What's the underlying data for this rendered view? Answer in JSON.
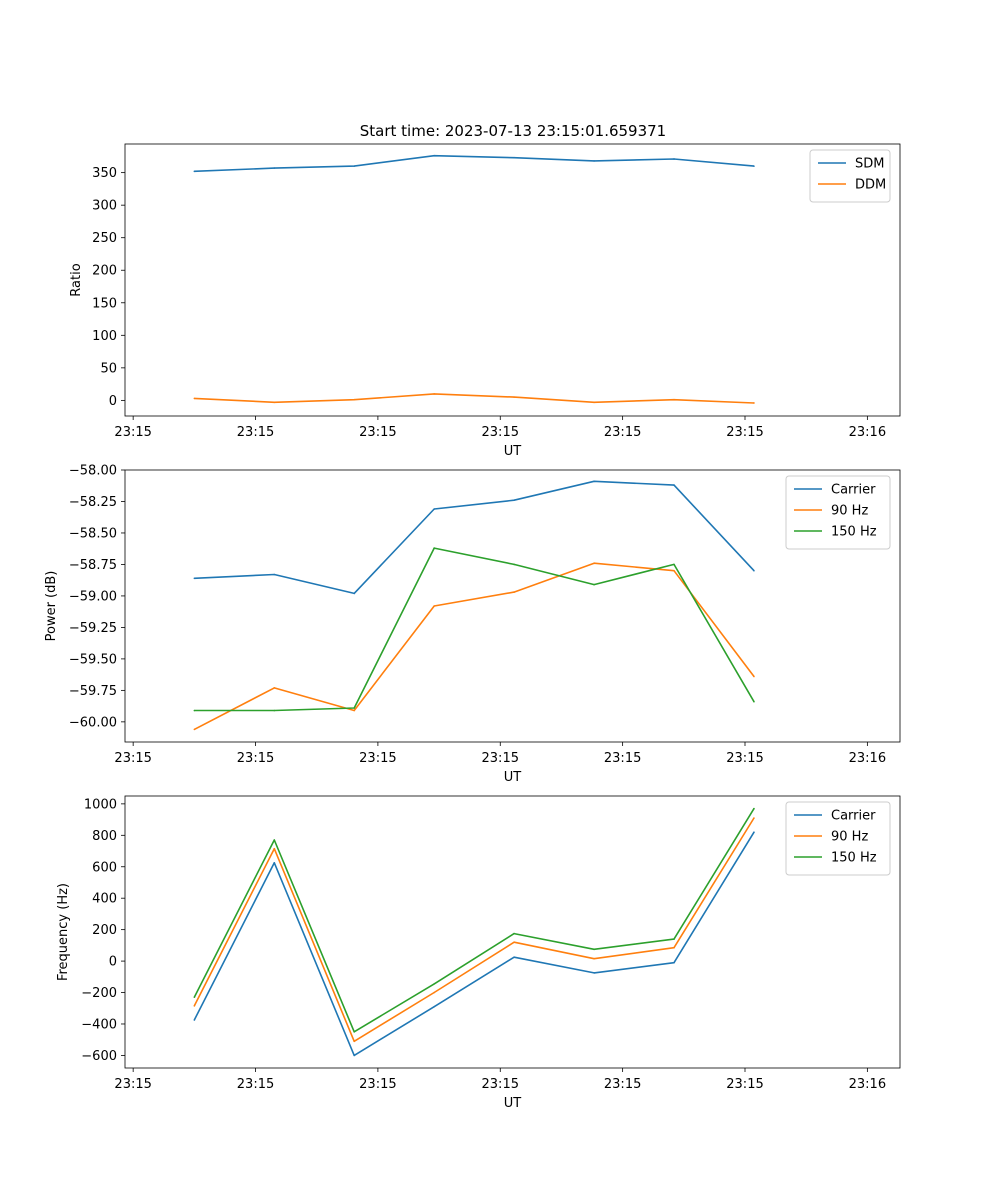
{
  "figure_title": "Start time: 2023-07-13 23:15:01.659371",
  "colors": {
    "blue": "#1f77b4",
    "orange": "#ff7f0e",
    "green": "#2ca02c"
  },
  "chart_data": [
    {
      "type": "line",
      "title": "Start time: 2023-07-13 23:15:01.659371",
      "xlabel": "UT",
      "ylabel": "Ratio",
      "xlim": [
        -0.6,
        8.9
      ],
      "x_tick_positions": [
        -0.5,
        1,
        2.5,
        4,
        5.5,
        7,
        8.5
      ],
      "x_tick_labels": [
        "23:15",
        "23:15",
        "23:15",
        "23:15",
        "23:15",
        "23:15",
        "23:16"
      ],
      "ylim": [
        -24,
        394
      ],
      "y_ticks": [
        0,
        50,
        100,
        150,
        200,
        250,
        300,
        350
      ],
      "y_tick_labels": [
        "0",
        "50",
        "100",
        "150",
        "200",
        "250",
        "300",
        "350"
      ],
      "x": [
        0.25,
        1.23,
        2.21,
        3.19,
        4.17,
        5.15,
        6.13,
        7.11
      ],
      "series": [
        {
          "name": "SDM",
          "color": "#1f77b4",
          "values": [
            352,
            357,
            360,
            376,
            373,
            368,
            371,
            360
          ]
        },
        {
          "name": "DDM",
          "color": "#ff7f0e",
          "values": [
            3,
            -3,
            1,
            10,
            5,
            -3,
            1,
            -4
          ]
        }
      ],
      "legend": "upper right"
    },
    {
      "type": "line",
      "title": "",
      "xlabel": "UT",
      "ylabel": "Power (dB)",
      "xlim": [
        -0.6,
        8.9
      ],
      "x_tick_positions": [
        -0.5,
        1,
        2.5,
        4,
        5.5,
        7,
        8.5
      ],
      "x_tick_labels": [
        "23:15",
        "23:15",
        "23:15",
        "23:15",
        "23:15",
        "23:15",
        "23:16"
      ],
      "ylim": [
        -60.16,
        -58.0
      ],
      "y_ticks": [
        -60.0,
        -59.75,
        -59.5,
        -59.25,
        -59.0,
        -58.75,
        -58.5,
        -58.25,
        -58.0
      ],
      "y_tick_labels": [
        "−60.00",
        "−59.75",
        "−59.50",
        "−59.25",
        "−59.00",
        "−58.75",
        "−58.50",
        "−58.25",
        "−58.00"
      ],
      "x": [
        0.25,
        1.23,
        2.21,
        3.19,
        4.17,
        5.15,
        6.13,
        7.11
      ],
      "series": [
        {
          "name": "Carrier",
          "color": "#1f77b4",
          "values": [
            -58.86,
            -58.83,
            -58.98,
            -58.31,
            -58.24,
            -58.09,
            -58.12,
            -58.8
          ]
        },
        {
          "name": "90 Hz",
          "color": "#ff7f0e",
          "values": [
            -60.06,
            -59.73,
            -59.91,
            -59.08,
            -58.97,
            -58.74,
            -58.8,
            -59.64
          ]
        },
        {
          "name": "150 Hz",
          "color": "#2ca02c",
          "values": [
            -59.91,
            -59.91,
            -59.89,
            -58.62,
            -58.75,
            -58.91,
            -58.75,
            -59.84
          ]
        }
      ],
      "legend": "upper right"
    },
    {
      "type": "line",
      "title": "",
      "xlabel": "UT",
      "ylabel": "Frequency (Hz)",
      "xlim": [
        -0.6,
        8.9
      ],
      "x_tick_positions": [
        -0.5,
        1,
        2.5,
        4,
        5.5,
        7,
        8.5
      ],
      "x_tick_labels": [
        "23:15",
        "23:15",
        "23:15",
        "23:15",
        "23:15",
        "23:15",
        "23:16"
      ],
      "ylim": [
        -680,
        1050
      ],
      "y_ticks": [
        -600,
        -400,
        -200,
        0,
        200,
        400,
        600,
        800,
        1000
      ],
      "y_tick_labels": [
        "−600",
        "−400",
        "−200",
        "0",
        "200",
        "400",
        "600",
        "800",
        "1000"
      ],
      "x": [
        0.25,
        1.23,
        2.21,
        3.19,
        4.17,
        5.15,
        6.13,
        7.11
      ],
      "series": [
        {
          "name": "Carrier",
          "color": "#1f77b4",
          "values": [
            -375,
            625,
            -600,
            -290,
            25,
            -75,
            -10,
            820
          ]
        },
        {
          "name": "90 Hz",
          "color": "#ff7f0e",
          "values": [
            -285,
            715,
            -510,
            -200,
            120,
            15,
            85,
            910
          ]
        },
        {
          "name": "150 Hz",
          "color": "#2ca02c",
          "values": [
            -230,
            770,
            -450,
            -145,
            175,
            75,
            140,
            970
          ]
        }
      ],
      "legend": "upper right"
    }
  ]
}
